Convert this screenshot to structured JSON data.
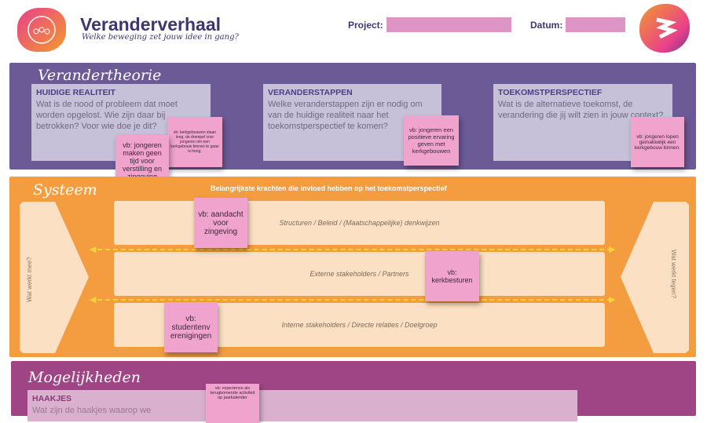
{
  "header": {
    "title": "Veranderverhaal",
    "subtitle": "Welke beweging zet jouw idee in gang?",
    "project_label": "Project:",
    "datum_label": "Datum:",
    "project_value": "",
    "datum_value": ""
  },
  "colors": {
    "purple": "#6b5a96",
    "orange": "#f39c40",
    "magenta": "#9f4585",
    "sticky": "#f0a3cc"
  },
  "theory": {
    "title": "Verandertheorie",
    "boxes": [
      {
        "heading": "HUIDIGE REALITEIT",
        "text": "Wat is de nood of probleem dat moet worden opgelost. Wie zijn daar bij betrokken? Voor wie doe je dit?"
      },
      {
        "heading": "VERANDERSTAPPEN",
        "text": "Welke veranderstappen zijn er nodig om van de huidige realiteit naar het toekomstperspectief te komen?"
      },
      {
        "heading": "TOEKOMSTPERSPECTIEF",
        "text": "Wat is de alternatieve toekomst, de verandering die jij wilt zien in jouw context?"
      }
    ],
    "stickies": [
      "vb: jongeren maken geen tijd voor verstilling en zingeving",
      "vb: kerkgebouwen staan leeg, de drempel voor jongeren om een kerkgebouw binnen te gaan is hoog.",
      "vb: jongeren een positieve ervaring geven met kerkgebouwen",
      "vb: jongeren lopen gemakkelijk een kerkgebouw binnen."
    ]
  },
  "system": {
    "title": "Systeem",
    "heading": "Belangrijkste krachten die invloed hebben op het toekomstperspectief",
    "left": "Wat werkt mee?",
    "right": "Wat werkt tegen?",
    "rows": [
      "Structuren / Beleid / (Maatschappelijke) denkwijzen",
      "Externe stakeholders / Partners",
      "Interne stakeholders / Directe relaties / Doelgroep"
    ],
    "stickies": [
      "vb: aandacht voor zingeving",
      "vb: kerkbesturen",
      "vb: studentenv erenigingen"
    ]
  },
  "possibilities": {
    "title": "Mogelijkheden",
    "heading": "HAAKJES",
    "text": "Wat zijn de haakjes waarop we",
    "sticky": "vb: experience als terugkomende activiteit op jaarkalender"
  }
}
